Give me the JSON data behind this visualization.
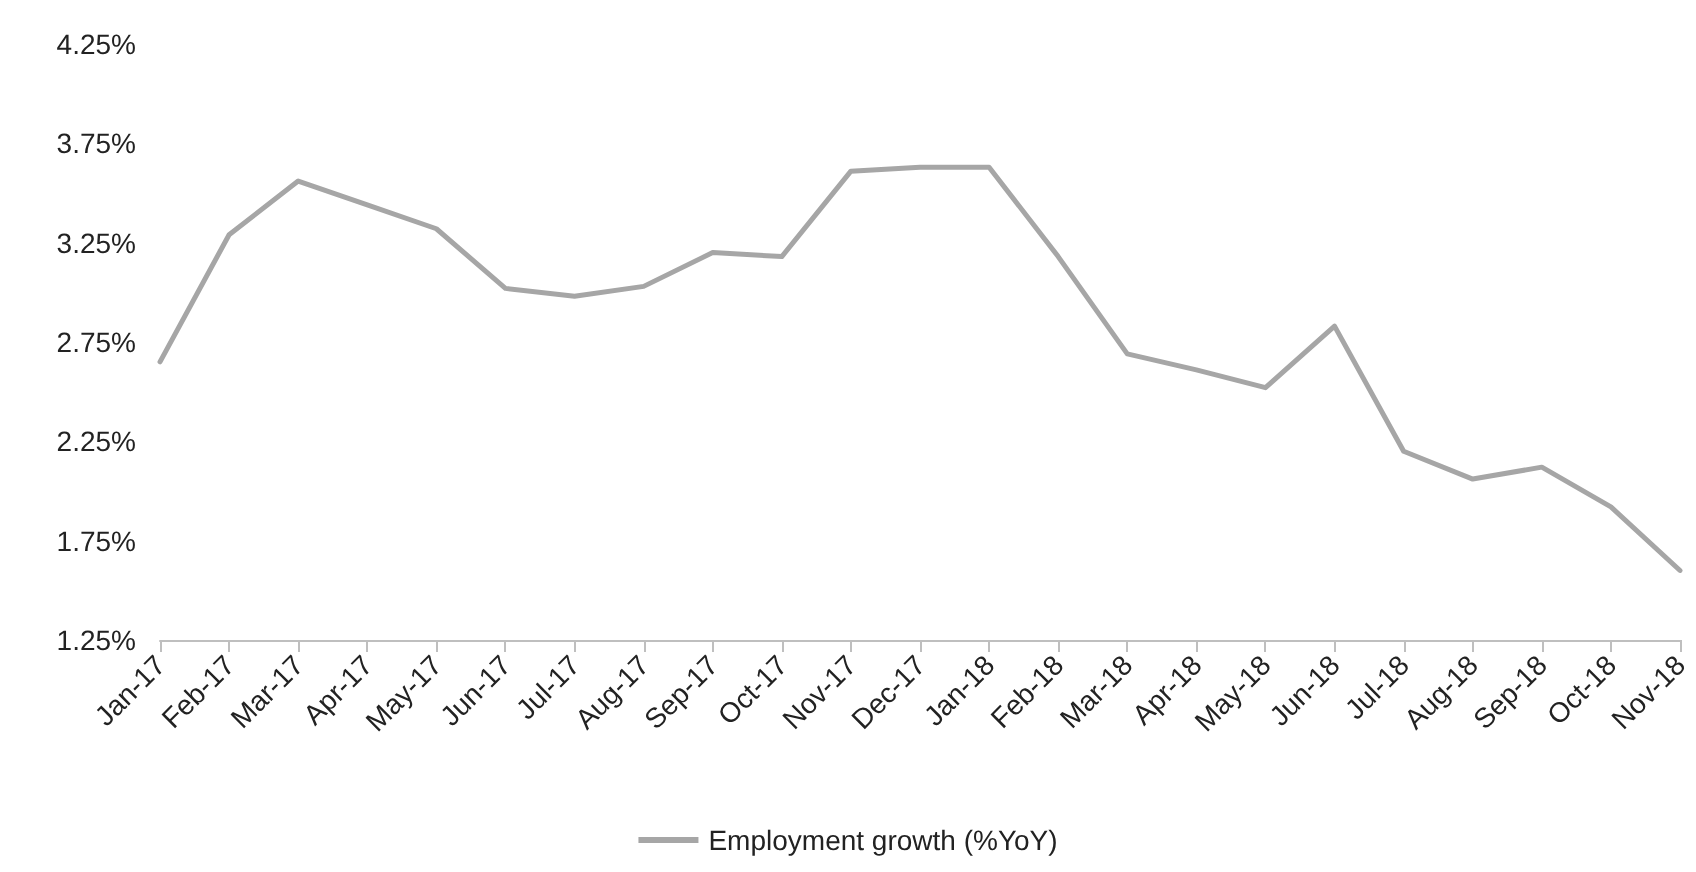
{
  "chart_data": {
    "type": "line",
    "categories": [
      "Jan-17",
      "Feb-17",
      "Mar-17",
      "Apr-17",
      "May-17",
      "Jun-17",
      "Jul-17",
      "Aug-17",
      "Sep-17",
      "Oct-17",
      "Nov-17",
      "Dec-17",
      "Jan-18",
      "Feb-18",
      "Mar-18",
      "Apr-18",
      "May-18",
      "Jun-18",
      "Jul-18",
      "Aug-18",
      "Sep-18",
      "Oct-18",
      "Nov-18"
    ],
    "series": [
      {
        "name": "Employment growth (%YoY)",
        "color": "#a6a6a6",
        "values": [
          2.65,
          3.29,
          3.56,
          3.44,
          3.32,
          3.02,
          2.98,
          3.03,
          3.2,
          3.18,
          3.61,
          3.63,
          3.63,
          3.18,
          2.69,
          2.61,
          2.52,
          2.83,
          2.2,
          2.06,
          2.12,
          1.92,
          1.6
        ]
      }
    ],
    "ylim": [
      1.25,
      4.25
    ],
    "yticks": [
      {
        "value": 1.25,
        "label": "1.25%"
      },
      {
        "value": 1.75,
        "label": "1.75%"
      },
      {
        "value": 2.25,
        "label": "2.25%"
      },
      {
        "value": 2.75,
        "label": "2.75%"
      },
      {
        "value": 3.25,
        "label": "3.25%"
      },
      {
        "value": 3.75,
        "label": "3.75%"
      },
      {
        "value": 4.25,
        "label": "4.25%"
      }
    ],
    "grid": false,
    "legend": "bottom",
    "marker": "none",
    "line_style": "solid"
  }
}
